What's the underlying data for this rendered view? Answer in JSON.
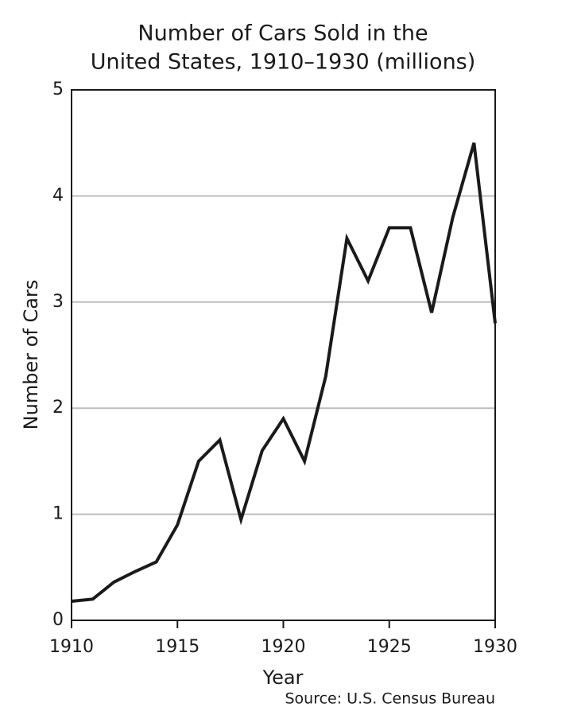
{
  "chart_data": {
    "type": "line",
    "title": [
      "Number of Cars Sold in the",
      "United States, 1910–1930 (millions)"
    ],
    "x_label": "Year",
    "y_label": "Number of Cars",
    "source": "Source: U.S. Census Bureau",
    "x": [
      1910,
      1911,
      1912,
      1913,
      1914,
      1915,
      1916,
      1917,
      1918,
      1919,
      1920,
      1921,
      1922,
      1923,
      1924,
      1925,
      1926,
      1927,
      1928,
      1929,
      1930
    ],
    "series": [
      {
        "name": "Number of Cars",
        "color": "#1a1a1a",
        "values": [
          0.18,
          0.2,
          0.36,
          0.46,
          0.55,
          0.9,
          1.5,
          1.7,
          0.95,
          1.6,
          1.9,
          1.5,
          2.3,
          3.6,
          3.2,
          3.7,
          3.7,
          2.9,
          3.8,
          4.5,
          2.8
        ]
      }
    ],
    "xlim": [
      1910,
      1930
    ],
    "xticks": [
      1910,
      1915,
      1920,
      1925,
      1930
    ],
    "ylim": [
      0,
      5
    ],
    "yticks": [
      0,
      1,
      2,
      3,
      4,
      5
    ],
    "grid": true
  }
}
